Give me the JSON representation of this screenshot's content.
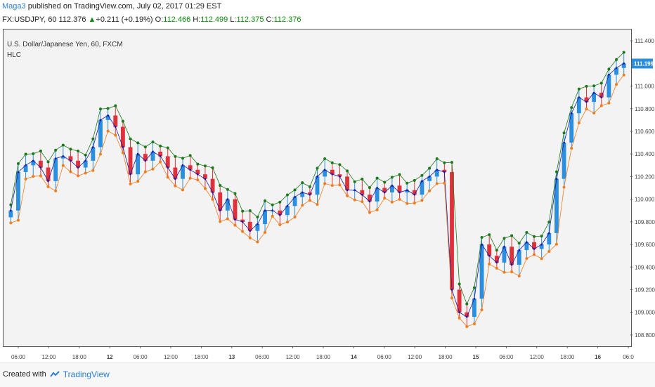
{
  "header": {
    "author": "Maga3",
    "published_text": "published on TradingView.com, July 02, 2017 01:29 EST",
    "symbol": "FX:USDJPY, 60",
    "last": "112.376",
    "change": "+0.211",
    "change_pct": "(+0.19%)",
    "o_label": "O:",
    "o_value": "112.466",
    "h_label": "H:",
    "h_value": "112.499",
    "l_label": "L:",
    "l_value": "112.375",
    "c_label": "C:",
    "c_value": "112.376"
  },
  "chart_labels": {
    "instrument": "U.S. Dollar/Japanese Yen, 60, FXCM",
    "indicator": "HLC"
  },
  "footer": {
    "created_with": "Created with",
    "brand": "TradingView"
  },
  "colors": {
    "up": "#2b8fe0",
    "down": "#e0313a",
    "high_line": "#1a7a1a",
    "low_line": "#f07c1c",
    "mid_line": "#1a1aa0",
    "price_badge": "#2b8fe0"
  },
  "chart_data": {
    "type": "candlestick",
    "instrument": "U.S. Dollar/Japanese Yen, 60, FXCM",
    "indicator": "HLC",
    "ylim": [
      108.7,
      111.5
    ],
    "y_ticks": [
      "111.400",
      "111.000",
      "110.800",
      "110.600",
      "110.400",
      "110.200",
      "110.000",
      "109.800",
      "109.600",
      "109.400",
      "109.200",
      "109.000",
      "108.800"
    ],
    "x_ticks": [
      "06:00",
      "12:00",
      "18:00",
      "12",
      "06:00",
      "12:00",
      "18:00",
      "13",
      "06:00",
      "12:00",
      "18:00",
      "14",
      "06:00",
      "12:00",
      "18:00",
      "15",
      "06:00",
      "12:00",
      "18:00",
      "16",
      "06:0"
    ],
    "last_price": "111.199",
    "close": [
      109.9,
      110.24,
      110.3,
      110.34,
      110.28,
      110.16,
      110.36,
      110.38,
      110.34,
      110.28,
      110.34,
      110.46,
      110.7,
      110.74,
      110.64,
      110.46,
      110.22,
      110.4,
      110.34,
      110.42,
      110.38,
      110.28,
      110.18,
      110.3,
      110.26,
      110.22,
      110.18,
      110.06,
      109.9,
      110.0,
      109.82,
      109.8,
      109.72,
      109.78,
      109.9,
      109.9,
      109.86,
      109.94,
      110.02,
      110.06,
      110.04,
      110.2,
      110.26,
      110.22,
      110.2,
      110.08,
      110.08,
      110.04,
      109.98,
      110.1,
      110.06,
      110.12,
      110.06,
      110.08,
      110.04,
      110.16,
      110.2,
      110.26,
      110.24,
      109.2,
      109.0,
      108.96,
      109.12,
      109.6,
      109.5,
      109.44,
      109.58,
      109.42,
      109.55,
      109.62,
      109.56,
      109.6,
      109.7,
      110.18,
      110.5,
      110.76,
      110.9,
      110.86,
      110.94,
      110.9,
      111.1,
      111.16,
      111.2
    ]
  }
}
